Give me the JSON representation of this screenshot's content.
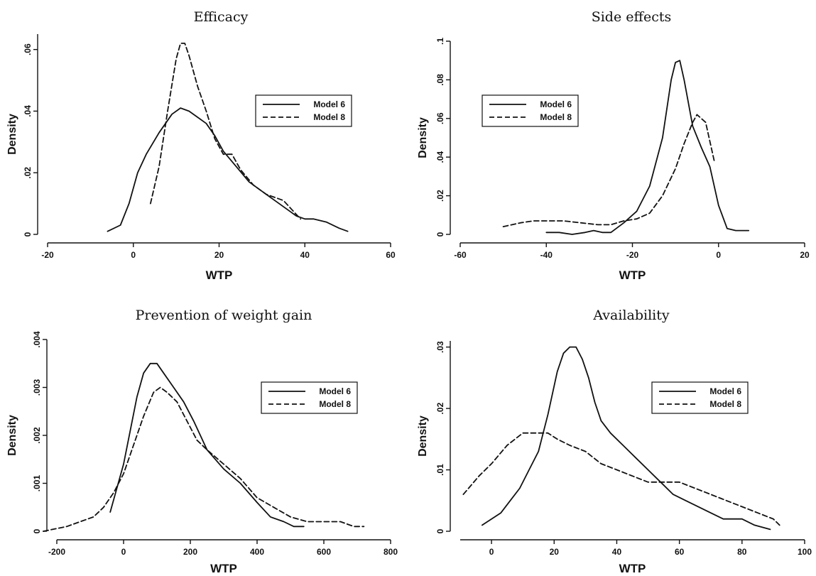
{
  "chart_data": [
    {
      "type": "line",
      "title": "Efficacy",
      "xlabel": "WTP",
      "ylabel": "Density",
      "xlim": [
        -20,
        60
      ],
      "ylim": [
        0,
        0.065
      ],
      "xticks": [
        -20,
        0,
        20,
        40,
        60
      ],
      "yticks": [
        0,
        0.02,
        0.04,
        0.06
      ],
      "ytick_labels": [
        "0",
        ".02",
        ".04",
        ".06"
      ],
      "legend": "right",
      "grid": false,
      "series": [
        {
          "name": "Model 6",
          "style": "solid",
          "x": [
            -6,
            -3,
            -1,
            1,
            3,
            6,
            9,
            11,
            13,
            15,
            17,
            19,
            21,
            24,
            27,
            30,
            33,
            36,
            38,
            40,
            42,
            45,
            48,
            50
          ],
          "y": [
            0.001,
            0.003,
            0.01,
            0.02,
            0.026,
            0.033,
            0.039,
            0.041,
            0.04,
            0.038,
            0.036,
            0.032,
            0.027,
            0.022,
            0.017,
            0.014,
            0.011,
            0.008,
            0.006,
            0.005,
            0.005,
            0.004,
            0.002,
            0.001
          ]
        },
        {
          "name": "Model 8",
          "style": "dashed",
          "x": [
            4,
            6,
            8,
            10,
            11,
            12,
            13,
            15,
            17,
            19,
            21,
            23,
            25,
            28,
            31,
            35,
            37,
            39
          ],
          "y": [
            0.01,
            0.022,
            0.04,
            0.057,
            0.062,
            0.062,
            0.058,
            0.048,
            0.04,
            0.031,
            0.026,
            0.026,
            0.021,
            0.016,
            0.013,
            0.011,
            0.008,
            0.005
          ]
        }
      ]
    },
    {
      "type": "line",
      "title": "Side effects",
      "xlabel": "WTP",
      "ylabel": "Density",
      "xlim": [
        -60,
        20
      ],
      "ylim": [
        0,
        0.1
      ],
      "xticks": [
        -60,
        -40,
        -20,
        0,
        20
      ],
      "yticks": [
        0,
        0.02,
        0.04,
        0.06,
        0.08,
        0.1
      ],
      "ytick_labels": [
        "0",
        ".02",
        ".04",
        ".06",
        ".08",
        ".1"
      ],
      "legend": "top-left",
      "grid": false,
      "series": [
        {
          "name": "Model 6",
          "style": "solid",
          "x": [
            -40,
            -37,
            -34,
            -31,
            -29,
            -27,
            -25,
            -22,
            -19,
            -16,
            -13,
            -11,
            -10,
            -9,
            -8,
            -6,
            -4,
            -2,
            0,
            2,
            4,
            7
          ],
          "y": [
            0.001,
            0.001,
            0.0,
            0.001,
            0.002,
            0.001,
            0.001,
            0.006,
            0.012,
            0.025,
            0.05,
            0.08,
            0.089,
            0.09,
            0.08,
            0.056,
            0.045,
            0.035,
            0.015,
            0.003,
            0.002,
            0.002
          ]
        },
        {
          "name": "Model 8",
          "style": "dashed",
          "x": [
            -50,
            -46,
            -43,
            -40,
            -36,
            -32,
            -28,
            -25,
            -22,
            -19,
            -16,
            -13,
            -10,
            -8,
            -6,
            -5,
            -3,
            -1
          ],
          "y": [
            0.004,
            0.006,
            0.007,
            0.007,
            0.007,
            0.006,
            0.005,
            0.005,
            0.007,
            0.008,
            0.011,
            0.02,
            0.034,
            0.047,
            0.058,
            0.062,
            0.058,
            0.038
          ]
        }
      ]
    },
    {
      "type": "line",
      "title": "Prevention of weight gain",
      "xlabel": "WTP",
      "ylabel": "Density",
      "xlim": [
        -200,
        800
      ],
      "ylim": [
        0,
        0.004
      ],
      "xticks": [
        -200,
        0,
        200,
        400,
        600,
        800
      ],
      "yticks": [
        0,
        0.001,
        0.002,
        0.003,
        0.004
      ],
      "ytick_labels": [
        "0",
        ".001",
        ".002",
        ".003",
        ".004"
      ],
      "legend": "right",
      "grid": false,
      "series": [
        {
          "name": "Model 6",
          "style": "solid",
          "x": [
            -40,
            -20,
            0,
            20,
            40,
            60,
            80,
            100,
            120,
            150,
            180,
            210,
            250,
            300,
            350,
            400,
            440,
            480,
            510,
            540
          ],
          "y": [
            0.0004,
            0.0009,
            0.0014,
            0.0021,
            0.0028,
            0.0033,
            0.0035,
            0.0035,
            0.0033,
            0.003,
            0.0027,
            0.0023,
            0.0017,
            0.0013,
            0.001,
            0.0006,
            0.0003,
            0.0002,
            0.0001,
            0.0001
          ]
        },
        {
          "name": "Model 8",
          "style": "dashed",
          "x": [
            -240,
            -170,
            -130,
            -90,
            -60,
            -30,
            0,
            30,
            60,
            90,
            110,
            130,
            160,
            190,
            220,
            250,
            300,
            350,
            400,
            450,
            500,
            550,
            600,
            650,
            690,
            720
          ],
          "y": [
            0.0,
            0.0001,
            0.0002,
            0.0003,
            0.0005,
            0.0008,
            0.0012,
            0.0018,
            0.0024,
            0.0029,
            0.003,
            0.0029,
            0.0027,
            0.0023,
            0.0019,
            0.0017,
            0.0014,
            0.0011,
            0.0007,
            0.0005,
            0.0003,
            0.0002,
            0.0002,
            0.0002,
            0.0001,
            0.0001
          ]
        }
      ]
    },
    {
      "type": "line",
      "title": "Availability",
      "xlabel": "WTP",
      "ylabel": "Density",
      "xlim": [
        -10,
        100
      ],
      "ylim": [
        0,
        0.031
      ],
      "xticks": [
        0,
        20,
        40,
        60,
        80,
        100
      ],
      "yticks": [
        0,
        0.01,
        0.02,
        0.03
      ],
      "ytick_labels": [
        "0",
        ".01",
        ".02",
        ".03"
      ],
      "legend": "right",
      "grid": false,
      "series": [
        {
          "name": "Model 6",
          "style": "solid",
          "x": [
            -3,
            0,
            3,
            6,
            9,
            12,
            15,
            18,
            21,
            23,
            25,
            27,
            29,
            31,
            33,
            35,
            38,
            42,
            46,
            50,
            54,
            58,
            62,
            66,
            70,
            74,
            78,
            80,
            84,
            89
          ],
          "y": [
            0.001,
            0.002,
            0.003,
            0.005,
            0.007,
            0.01,
            0.013,
            0.019,
            0.026,
            0.029,
            0.03,
            0.03,
            0.028,
            0.025,
            0.021,
            0.018,
            0.016,
            0.014,
            0.012,
            0.01,
            0.008,
            0.006,
            0.005,
            0.004,
            0.003,
            0.002,
            0.002,
            0.002,
            0.001,
            0.0003
          ]
        },
        {
          "name": "Model 8",
          "style": "dashed",
          "x": [
            -9,
            -4,
            0,
            5,
            10,
            15,
            18,
            21,
            25,
            30,
            35,
            40,
            45,
            50,
            55,
            60,
            65,
            70,
            75,
            80,
            85,
            90,
            92
          ],
          "y": [
            0.006,
            0.009,
            0.011,
            0.014,
            0.016,
            0.016,
            0.016,
            0.015,
            0.014,
            0.013,
            0.011,
            0.01,
            0.009,
            0.008,
            0.008,
            0.008,
            0.007,
            0.006,
            0.005,
            0.004,
            0.003,
            0.002,
            0.001
          ]
        }
      ]
    }
  ]
}
